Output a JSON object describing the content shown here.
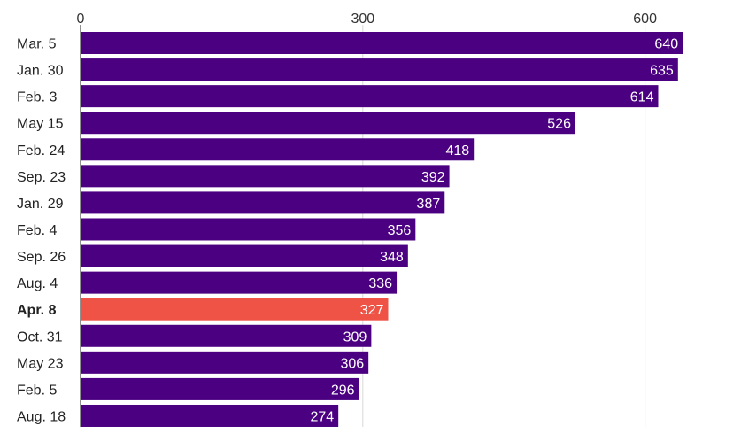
{
  "chart_data": {
    "type": "bar",
    "orientation": "horizontal",
    "title": "",
    "xlabel": "",
    "ylabel": "",
    "categories": [
      "Mar. 5",
      "Jan. 30",
      "Feb. 3",
      "May 15",
      "Feb. 24",
      "Sep. 23",
      "Jan. 29",
      "Feb. 4",
      "Sep. 26",
      "Aug. 4",
      "Apr. 8",
      "Oct. 31",
      "May 23",
      "Feb. 5",
      "Aug. 18"
    ],
    "values": [
      640,
      635,
      614,
      526,
      418,
      392,
      387,
      356,
      348,
      336,
      327,
      309,
      306,
      296,
      274
    ],
    "highlight": "Apr. 8",
    "xlim": [
      0,
      650
    ],
    "xticks": [
      0,
      300,
      600
    ],
    "grid": true,
    "legend": "none",
    "colors": {
      "bar": "#4a0080",
      "highlight": "#ee5346"
    }
  }
}
